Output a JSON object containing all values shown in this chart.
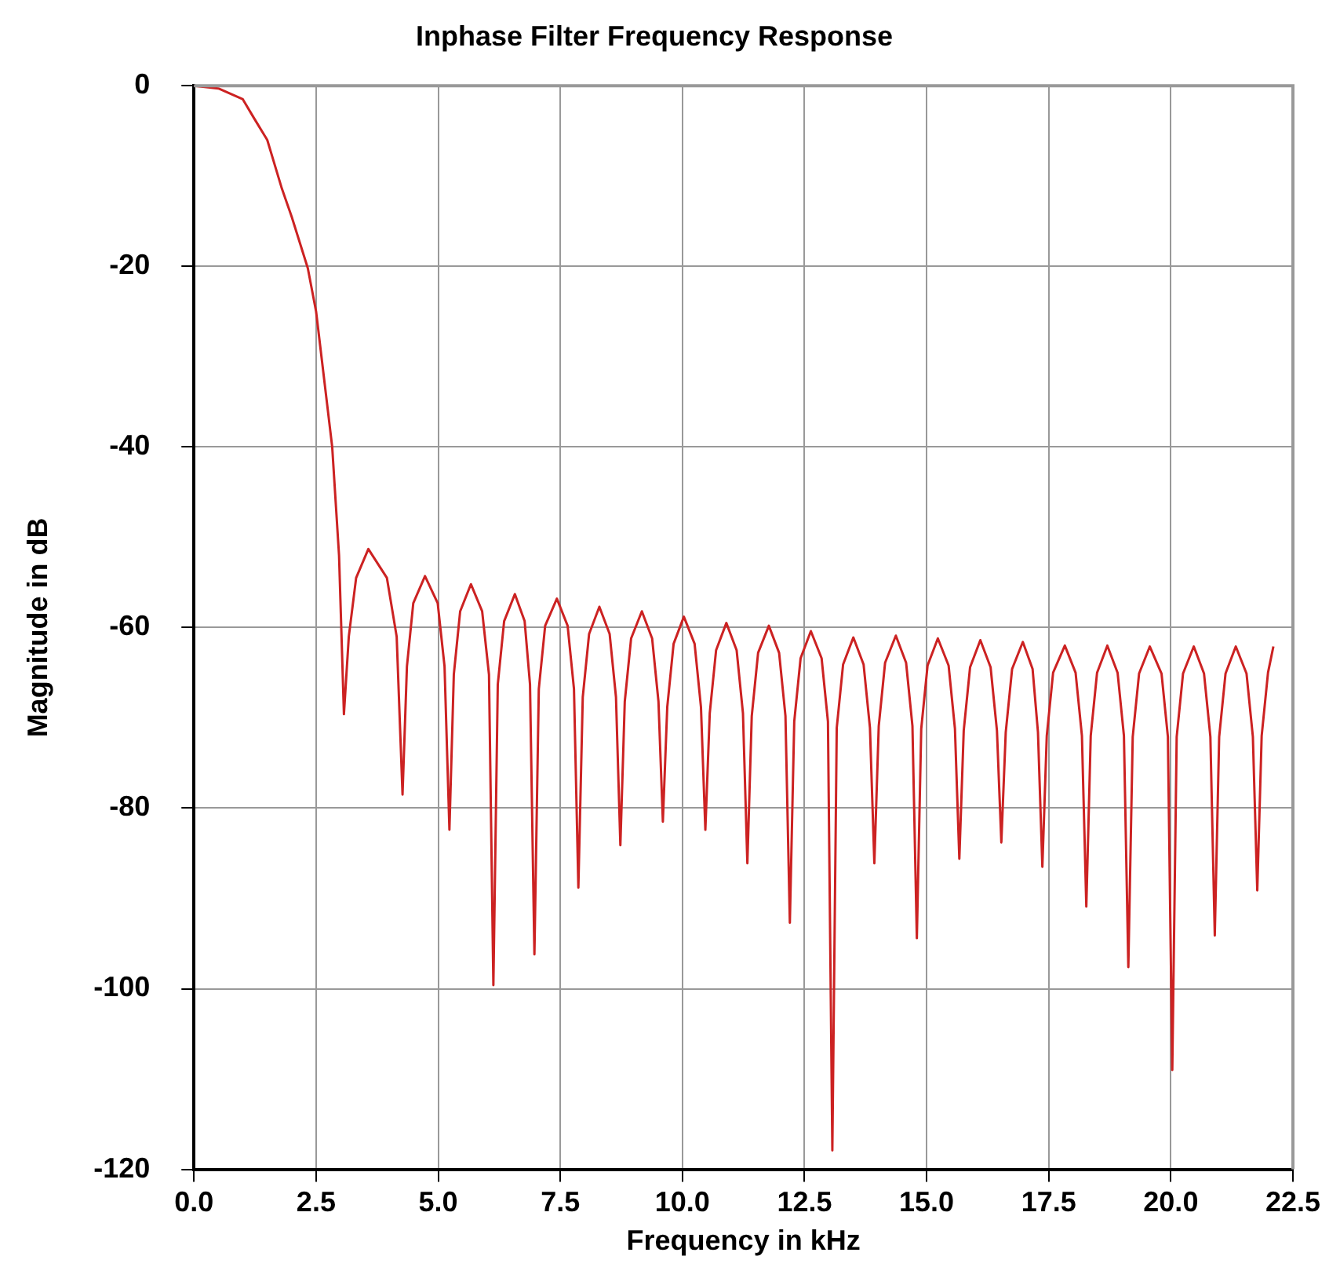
{
  "chart_data": {
    "type": "line",
    "title": "Inphase Filter Frequency Response",
    "xlabel": "Frequency in kHz",
    "ylabel": "Magnitude in dB",
    "xlim": [
      0,
      22.5
    ],
    "ylim": [
      -120,
      0
    ],
    "xticks": [
      {
        "value": 0,
        "label": "0.0"
      },
      2.5,
      {
        "value": 5,
        "label": "5.0"
      },
      7.5,
      {
        "value": 10,
        "label": "10.0"
      },
      12.5,
      {
        "value": 15,
        "label": "15.0"
      },
      17.5,
      {
        "value": 20,
        "label": "20.0"
      },
      22.5
    ],
    "yticks": [
      -120,
      -100,
      -80,
      -60,
      -40,
      -20,
      0
    ],
    "grid": true,
    "marker": "none",
    "line_style": "solid",
    "series": [
      {
        "color": "#cc2222",
        "x": [
          0,
          0.5,
          1.0,
          1.23,
          1.5,
          1.8,
          2.0,
          2.33,
          2.5,
          2.83,
          2.97,
          3.07,
          3.17,
          3.32,
          3.57,
          3.95,
          4.15,
          4.27,
          4.36,
          4.49,
          4.73,
          4.99,
          5.13,
          5.23,
          5.32,
          5.45,
          5.67,
          5.9,
          6.04,
          6.13,
          6.22,
          6.35,
          6.57,
          6.77,
          6.88,
          6.97,
          7.06,
          7.19,
          7.43,
          7.65,
          7.78,
          7.87,
          7.96,
          8.09,
          8.3,
          8.51,
          8.64,
          8.73,
          8.82,
          8.95,
          9.17,
          9.38,
          9.51,
          9.6,
          9.69,
          9.82,
          10.03,
          10.25,
          10.38,
          10.47,
          10.56,
          10.69,
          10.9,
          11.11,
          11.24,
          11.33,
          11.42,
          11.55,
          11.77,
          11.98,
          12.11,
          12.2,
          12.29,
          12.42,
          12.63,
          12.85,
          12.98,
          13.07,
          13.16,
          13.29,
          13.5,
          13.71,
          13.84,
          13.93,
          14.02,
          14.15,
          14.37,
          14.58,
          14.71,
          14.8,
          14.89,
          15.02,
          15.23,
          15.45,
          15.58,
          15.67,
          15.76,
          15.89,
          16.1,
          16.31,
          16.44,
          16.53,
          16.62,
          16.75,
          16.97,
          17.17,
          17.28,
          17.37,
          17.46,
          17.59,
          17.83,
          18.05,
          18.18,
          18.27,
          18.36,
          18.49,
          18.7,
          18.91,
          19.04,
          19.13,
          19.22,
          19.35,
          19.57,
          19.81,
          19.94,
          20.03,
          20.12,
          20.25,
          20.47,
          20.68,
          20.81,
          20.9,
          20.99,
          21.12,
          21.33,
          21.55,
          21.68,
          21.77,
          21.86,
          21.99,
          22.1
        ],
        "values": [
          0,
          -0.3,
          -1.5,
          -3.6,
          -6,
          -11.4,
          -14.5,
          -20.2,
          -25,
          -40,
          -52,
          -69.6,
          -61,
          -54.5,
          -51.3,
          -54.5,
          -61,
          -78.5,
          -64.3,
          -57.3,
          -54.3,
          -57.3,
          -64.3,
          -82.4,
          -65.2,
          -58.2,
          -55.2,
          -58.2,
          -65.2,
          -99.6,
          -66.3,
          -59.3,
          -56.3,
          -59.3,
          -66.3,
          -96.2,
          -66.8,
          -59.8,
          -56.8,
          -59.8,
          -66.8,
          -88.8,
          -67.7,
          -60.7,
          -57.7,
          -60.7,
          -67.7,
          -84.1,
          -68.2,
          -61.2,
          -58.2,
          -61.2,
          -68.2,
          -81.5,
          -68.8,
          -61.8,
          -58.8,
          -61.8,
          -68.8,
          -82.4,
          -69.5,
          -62.5,
          -59.5,
          -62.5,
          -69.5,
          -86.1,
          -69.8,
          -62.8,
          -59.8,
          -62.8,
          -69.8,
          -92.7,
          -70.4,
          -63.4,
          -60.4,
          -63.4,
          -70.4,
          -117.9,
          -71.1,
          -64.1,
          -61.1,
          -64.1,
          -71.1,
          -86.1,
          -70.9,
          -63.9,
          -60.9,
          -63.9,
          -70.9,
          -94.4,
          -71.2,
          -64.2,
          -61.2,
          -64.2,
          -71.2,
          -85.6,
          -71.4,
          -64.4,
          -61.4,
          -64.4,
          -71.4,
          -83.8,
          -71.6,
          -64.6,
          -61.6,
          -64.6,
          -71.6,
          -86.5,
          -72,
          -65,
          -62,
          -65,
          -72,
          -90.9,
          -72,
          -65,
          -62,
          -65,
          -72,
          -97.6,
          -72.1,
          -65.1,
          -62.1,
          -65.1,
          -72.1,
          -109,
          -72.1,
          -65.1,
          -62.1,
          -65.1,
          -72.1,
          -94.1,
          -72.1,
          -65.1,
          -62.1,
          -65.1,
          -72.1,
          -89.1,
          -72,
          -65,
          -62.1
        ]
      }
    ]
  }
}
